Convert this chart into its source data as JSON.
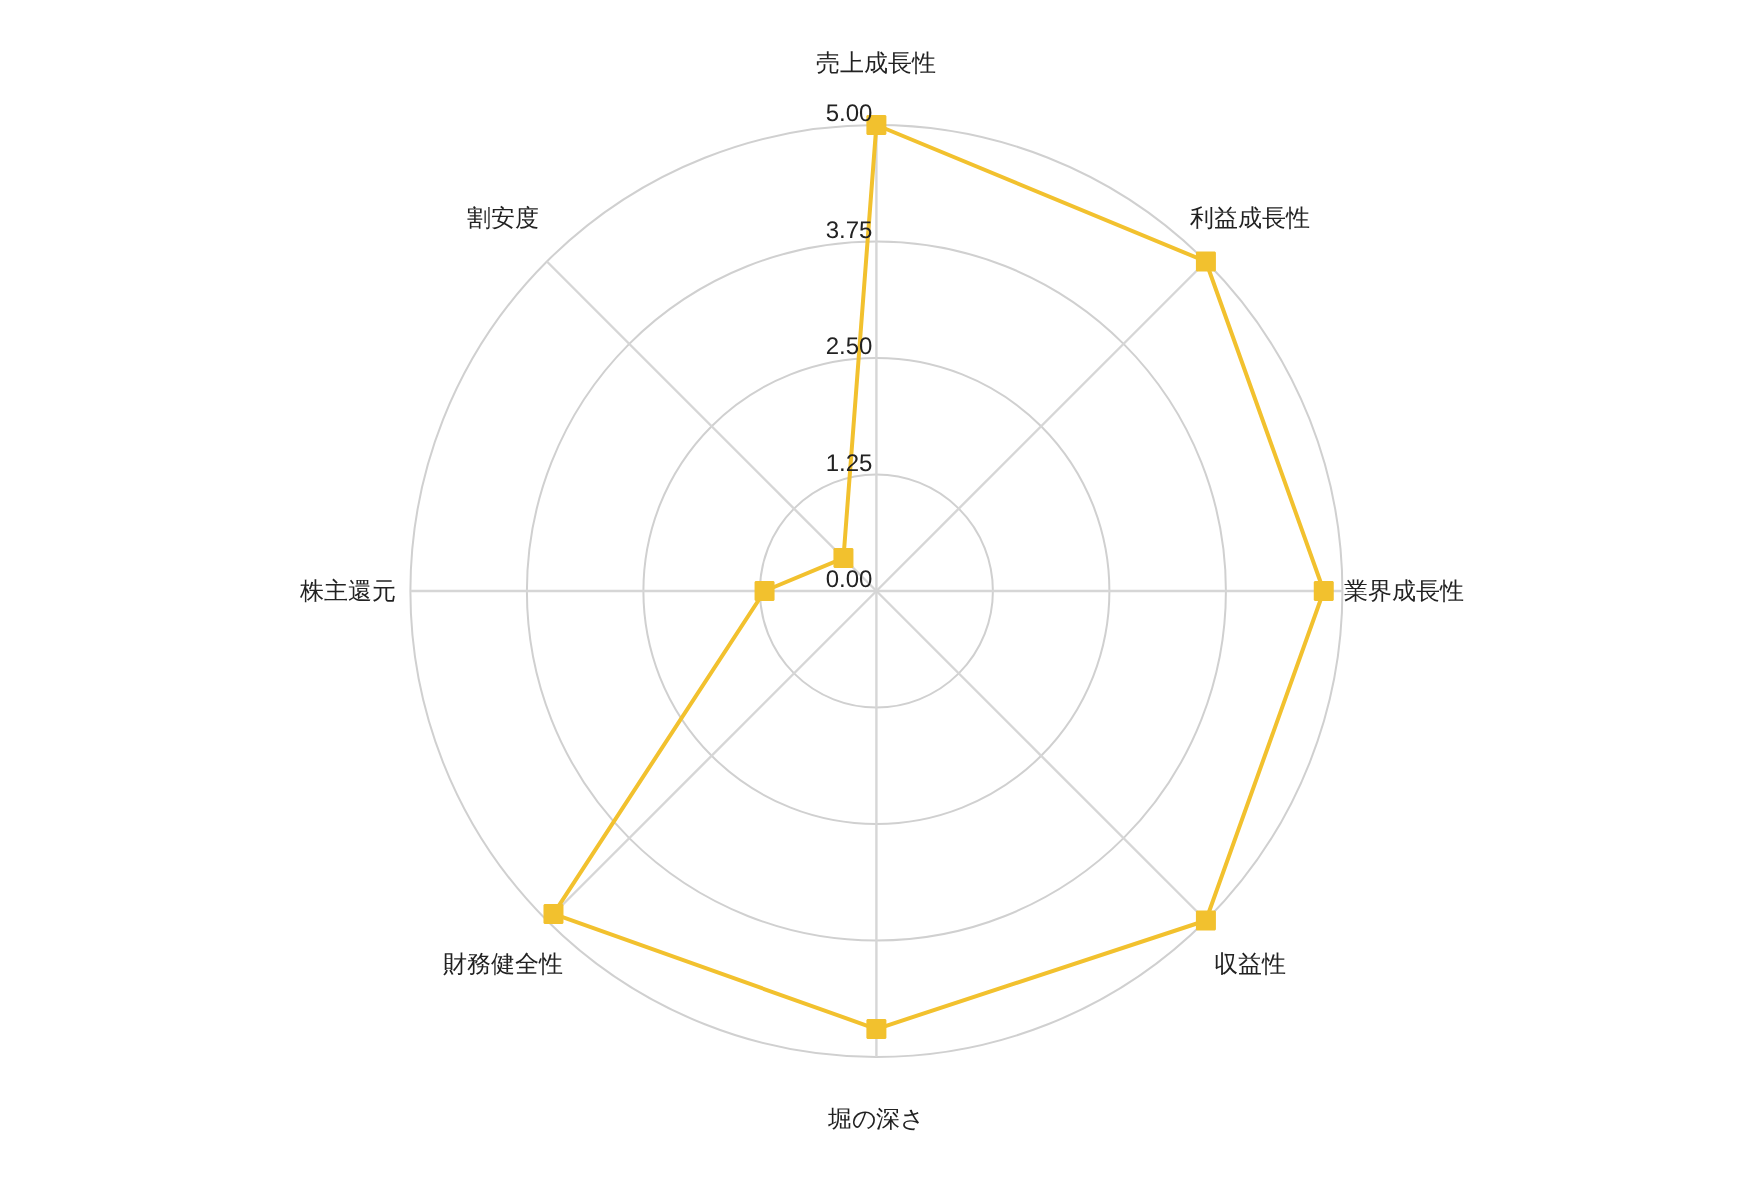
{
  "chart_data": {
    "type": "radar",
    "categories": [
      "売上成長性",
      "利益成長性",
      "業界成長性",
      "収益性",
      "堀の深さ",
      "財務健全性",
      "株主還元",
      "割安度"
    ],
    "series": [
      {
        "color": "#f2c12e",
        "values": [
          5.0,
          5.0,
          4.8,
          5.0,
          4.7,
          4.9,
          1.2,
          0.5
        ]
      }
    ],
    "ylim": [
      0,
      5
    ],
    "yticks": [
      {
        "value": 0,
        "label": "0.00"
      },
      1.25,
      {
        "value": 2.5,
        "label": "2.50"
      },
      3.75,
      {
        "value": 5,
        "label": "5.00"
      }
    ],
    "grid": true,
    "marker": "square",
    "line_style": "solid"
  }
}
